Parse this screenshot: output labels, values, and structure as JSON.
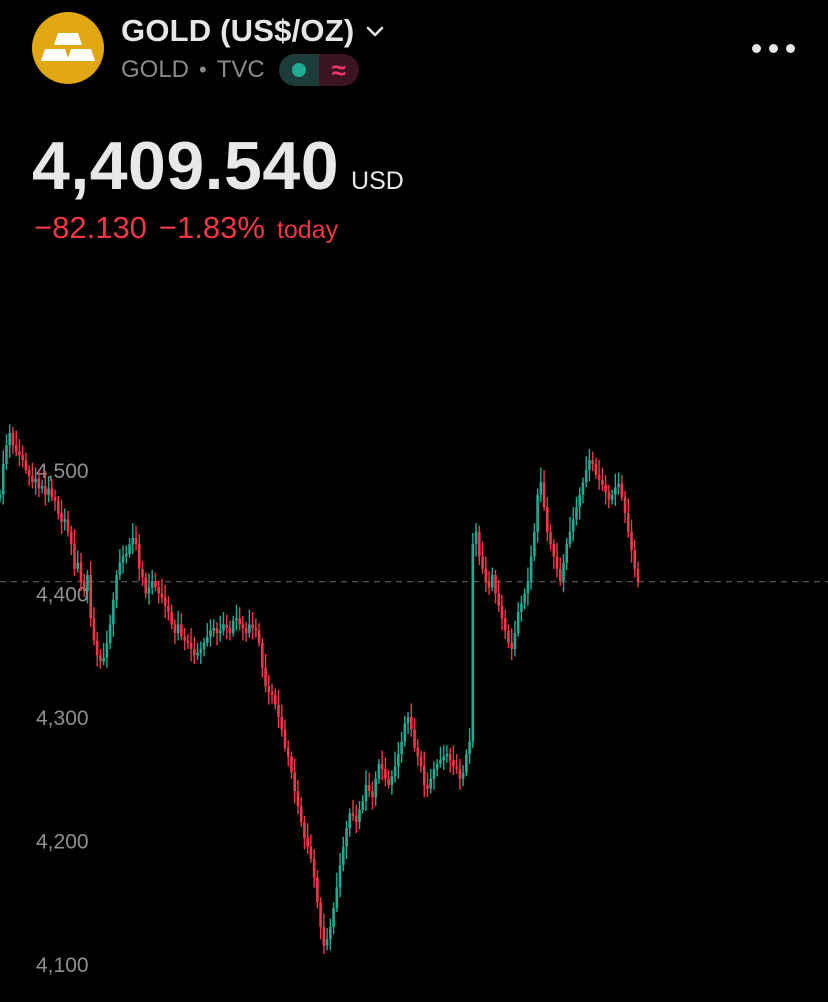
{
  "header": {
    "title": "GOLD (US$/OZ)",
    "symbol": "GOLD",
    "separator": "•",
    "exchange": "TVC",
    "status_symbol": "≈",
    "logo_icon": "gold-bars-icon",
    "menu_icon": "more-horizontal-icon",
    "dropdown_icon": "chevron-down-icon"
  },
  "quote": {
    "price": "4,409.540",
    "currency": "USD",
    "change": "−82.130",
    "change_pct": "−1.83%",
    "period": "today"
  },
  "colors": {
    "up": "#22ab94",
    "down": "#f23645",
    "accent_logo": "#E1A712",
    "text": "#e8e8e8",
    "muted": "#8a8a8a"
  },
  "chart_data": {
    "type": "candlestick",
    "yticks": [
      "4,500",
      "4,400",
      "4,300",
      "4,200",
      "4,100"
    ],
    "ytick_values": [
      4500,
      4400,
      4300,
      4200,
      4100
    ],
    "ylim": [
      4085,
      4545
    ],
    "current_price": 4409.54,
    "series": [
      {
        "values": [
          4480,
          4505,
          4520,
          4530,
          4520,
          4515,
          4512,
          4508,
          4500,
          4495,
          4490,
          4493,
          4485,
          4487,
          4480,
          4485,
          4478,
          4475,
          4465,
          4458,
          4460,
          4450,
          4440,
          4420,
          4425,
          4410,
          4402,
          4415,
          4380,
          4362,
          4350,
          4345,
          4348,
          4360,
          4375,
          4395,
          4415,
          4425,
          4430,
          4432,
          4440,
          4445,
          4440,
          4420,
          4413,
          4400,
          4405,
          4410,
          4405,
          4400,
          4397,
          4390,
          4385,
          4375,
          4368,
          4375,
          4365,
          4362,
          4360,
          4355,
          4350,
          4352,
          4355,
          4360,
          4365,
          4370,
          4372,
          4368,
          4370,
          4375,
          4372,
          4368,
          4378,
          4380,
          4375,
          4372,
          4368,
          4375,
          4372,
          4370,
          4360,
          4340,
          4325,
          4320,
          4318,
          4310,
          4300,
          4290,
          4275,
          4268,
          4255,
          4240,
          4228,
          4215,
          4202,
          4195,
          4185,
          4170,
          4150,
          4130,
          4115,
          4120,
          4130,
          4145,
          4162,
          4180,
          4195,
          4210,
          4222,
          4220,
          4215,
          4225,
          4232,
          4245,
          4240,
          4235,
          4250,
          4262,
          4258,
          4250,
          4245,
          4252,
          4260,
          4270,
          4280,
          4295,
          4300,
          4290,
          4275,
          4268,
          4260,
          4245,
          4242,
          4250,
          4258,
          4262,
          4265,
          4268,
          4270,
          4265,
          4260,
          4258,
          4250,
          4255,
          4270,
          4280,
          4440,
          4450,
          4430,
          4420,
          4410,
          4405,
          4415,
          4400,
          4390,
          4380,
          4370,
          4360,
          4355,
          4368,
          4385,
          4392,
          4400,
          4410,
          4430,
          4450,
          4480,
          4490,
          4470,
          4450,
          4440,
          4430,
          4420,
          4410,
          4425,
          4440,
          4450,
          4460,
          4470,
          4480,
          4490,
          4500,
          4508,
          4505,
          4496,
          4492,
          4488,
          4482,
          4476,
          4480,
          4486,
          4489,
          4478,
          4465,
          4450,
          4435,
          4420,
          4409
        ]
      }
    ]
  }
}
